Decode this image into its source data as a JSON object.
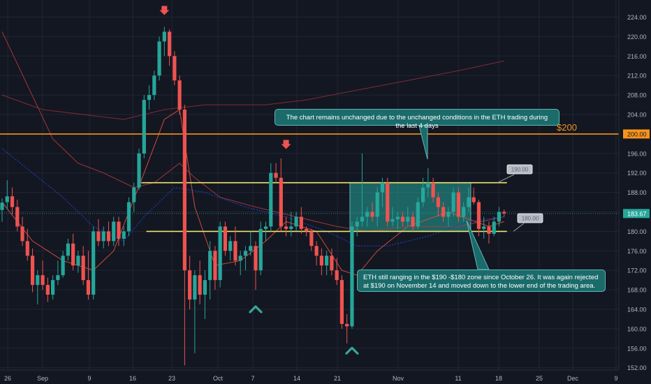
{
  "chart_data": {
    "type": "candlestick",
    "y_axis": {
      "ticks": [
        "224.00",
        "220.00",
        "216.00",
        "212.00",
        "208.00",
        "204.00",
        "200.00",
        "196.00",
        "192.00",
        "188.00",
        "184.00",
        "180.00",
        "176.00",
        "172.00",
        "168.00",
        "164.00",
        "160.00",
        "156.00",
        "152.00"
      ],
      "range": [
        151,
        226
      ]
    },
    "x_axis": {
      "ticks": [
        "26",
        "Sep",
        "9",
        "16",
        "23",
        "Oct",
        "7",
        "14",
        "21",
        "Nov",
        "11",
        "18",
        "25",
        "Dec",
        "9"
      ]
    },
    "price_label": "183.67",
    "candles": [
      {
        "o": 184.4,
        "h": 186.8,
        "l": 182.0,
        "c": 185.9
      },
      {
        "o": 186.0,
        "h": 190.5,
        "l": 184.5,
        "c": 187.2
      },
      {
        "o": 187.2,
        "h": 189.0,
        "l": 183.5,
        "c": 185.0
      },
      {
        "o": 185.0,
        "h": 186.5,
        "l": 180.0,
        "c": 181.0
      },
      {
        "o": 181.0,
        "h": 183.0,
        "l": 177.0,
        "c": 178.0
      },
      {
        "o": 178.0,
        "h": 180.5,
        "l": 174.0,
        "c": 175.0
      },
      {
        "o": 175.0,
        "h": 176.5,
        "l": 167.5,
        "c": 169.0
      },
      {
        "o": 169.0,
        "h": 172.0,
        "l": 165.0,
        "c": 171.0
      },
      {
        "o": 171.0,
        "h": 174.0,
        "l": 168.0,
        "c": 169.0
      },
      {
        "o": 169.0,
        "h": 170.5,
        "l": 165.5,
        "c": 167.0
      },
      {
        "o": 167.0,
        "h": 171.0,
        "l": 166.0,
        "c": 170.0
      },
      {
        "o": 170.0,
        "h": 174.0,
        "l": 169.0,
        "c": 171.0
      },
      {
        "o": 171.0,
        "h": 176.0,
        "l": 170.5,
        "c": 175.0
      },
      {
        "o": 175.0,
        "h": 178.5,
        "l": 174.0,
        "c": 177.5
      },
      {
        "o": 177.5,
        "h": 179.5,
        "l": 172.0,
        "c": 173.0
      },
      {
        "o": 173.0,
        "h": 176.0,
        "l": 171.5,
        "c": 175.0
      },
      {
        "o": 175.0,
        "h": 177.0,
        "l": 169.0,
        "c": 170.0
      },
      {
        "o": 170.0,
        "h": 176.0,
        "l": 166.0,
        "c": 167.0
      },
      {
        "o": 167.0,
        "h": 181.0,
        "l": 166.0,
        "c": 180.0
      },
      {
        "o": 180.0,
        "h": 182.5,
        "l": 177.0,
        "c": 178.0
      },
      {
        "o": 178.0,
        "h": 181.0,
        "l": 176.5,
        "c": 180.0
      },
      {
        "o": 180.0,
        "h": 182.0,
        "l": 177.0,
        "c": 178.0
      },
      {
        "o": 178.0,
        "h": 183.0,
        "l": 177.0,
        "c": 182.0
      },
      {
        "o": 182.0,
        "h": 183.0,
        "l": 177.0,
        "c": 178.5
      },
      {
        "o": 178.5,
        "h": 181.0,
        "l": 177.0,
        "c": 180.0
      },
      {
        "o": 180.0,
        "h": 187.0,
        "l": 179.0,
        "c": 186.0
      },
      {
        "o": 186.0,
        "h": 190.0,
        "l": 184.0,
        "c": 189.0
      },
      {
        "o": 189.0,
        "h": 197.0,
        "l": 188.5,
        "c": 196.0
      },
      {
        "o": 196.0,
        "h": 208.0,
        "l": 195.0,
        "c": 207.0
      },
      {
        "o": 207.0,
        "h": 210.0,
        "l": 205.0,
        "c": 208.0
      },
      {
        "o": 208.0,
        "h": 213.0,
        "l": 207.0,
        "c": 212.0
      },
      {
        "o": 212.0,
        "h": 220.0,
        "l": 211.0,
        "c": 219.0
      },
      {
        "o": 219.0,
        "h": 222.0,
        "l": 216.0,
        "c": 221.0
      },
      {
        "o": 221.0,
        "h": 221.5,
        "l": 214.0,
        "c": 216.0
      },
      {
        "o": 216.0,
        "h": 217.0,
        "l": 210.0,
        "c": 211.0
      },
      {
        "o": 211.0,
        "h": 212.0,
        "l": 204.0,
        "c": 205.0
      },
      {
        "o": 205.0,
        "h": 206.0,
        "l": 152.5,
        "c": 172.0
      },
      {
        "o": 172.0,
        "h": 175.0,
        "l": 164.0,
        "c": 166.0
      },
      {
        "o": 166.0,
        "h": 172.0,
        "l": 155.0,
        "c": 171.0
      },
      {
        "o": 171.0,
        "h": 174.0,
        "l": 165.0,
        "c": 167.0
      },
      {
        "o": 167.0,
        "h": 172.0,
        "l": 162.0,
        "c": 170.0
      },
      {
        "o": 170.0,
        "h": 178.0,
        "l": 166.0,
        "c": 176.0
      },
      {
        "o": 176.0,
        "h": 177.0,
        "l": 168.0,
        "c": 170.0
      },
      {
        "o": 170.0,
        "h": 182.0,
        "l": 168.5,
        "c": 181.0
      },
      {
        "o": 181.0,
        "h": 182.0,
        "l": 175.0,
        "c": 176.0
      },
      {
        "o": 176.0,
        "h": 179.0,
        "l": 174.0,
        "c": 178.0
      },
      {
        "o": 178.0,
        "h": 181.0,
        "l": 173.0,
        "c": 174.0
      },
      {
        "o": 174.0,
        "h": 176.0,
        "l": 171.0,
        "c": 175.0
      },
      {
        "o": 175.0,
        "h": 177.0,
        "l": 172.0,
        "c": 176.0
      },
      {
        "o": 176.0,
        "h": 180.0,
        "l": 175.0,
        "c": 177.0
      },
      {
        "o": 177.0,
        "h": 178.0,
        "l": 168.0,
        "c": 172.0
      },
      {
        "o": 172.0,
        "h": 182.0,
        "l": 171.0,
        "c": 180.5
      },
      {
        "o": 180.5,
        "h": 182.0,
        "l": 178.0,
        "c": 181.0
      },
      {
        "o": 181.0,
        "h": 194.0,
        "l": 180.0,
        "c": 192.0
      },
      {
        "o": 192.0,
        "h": 194.0,
        "l": 190.0,
        "c": 191.0
      },
      {
        "o": 191.0,
        "h": 195.0,
        "l": 180.0,
        "c": 181.0
      },
      {
        "o": 181.0,
        "h": 183.0,
        "l": 179.0,
        "c": 180.5
      },
      {
        "o": 180.5,
        "h": 184.0,
        "l": 179.0,
        "c": 181.0
      },
      {
        "o": 181.0,
        "h": 184.0,
        "l": 180.0,
        "c": 183.0
      },
      {
        "o": 183.0,
        "h": 185.0,
        "l": 179.5,
        "c": 180.5
      },
      {
        "o": 180.5,
        "h": 181.0,
        "l": 179.0,
        "c": 180.0
      },
      {
        "o": 180.0,
        "h": 180.5,
        "l": 176.0,
        "c": 177.0
      },
      {
        "o": 177.0,
        "h": 178.0,
        "l": 173.0,
        "c": 175.0
      },
      {
        "o": 175.0,
        "h": 176.5,
        "l": 171.0,
        "c": 173.0
      },
      {
        "o": 173.0,
        "h": 176.0,
        "l": 171.0,
        "c": 175.0
      },
      {
        "o": 175.0,
        "h": 176.5,
        "l": 171.0,
        "c": 172.0
      },
      {
        "o": 172.0,
        "h": 174.5,
        "l": 169.0,
        "c": 170.0
      },
      {
        "o": 170.0,
        "h": 171.0,
        "l": 160.0,
        "c": 161.0
      },
      {
        "o": 161.0,
        "h": 163.0,
        "l": 157.0,
        "c": 160.5
      },
      {
        "o": 160.5,
        "h": 182.0,
        "l": 160.0,
        "c": 181.0
      },
      {
        "o": 181.0,
        "h": 183.0,
        "l": 179.0,
        "c": 182.0
      },
      {
        "o": 182.0,
        "h": 196.0,
        "l": 181.0,
        "c": 183.0
      },
      {
        "o": 183.0,
        "h": 185.0,
        "l": 181.0,
        "c": 184.0
      },
      {
        "o": 184.0,
        "h": 186.0,
        "l": 182.0,
        "c": 183.0
      },
      {
        "o": 183.0,
        "h": 189.0,
        "l": 181.0,
        "c": 188.0
      },
      {
        "o": 188.0,
        "h": 191.0,
        "l": 185.0,
        "c": 190.0
      },
      {
        "o": 190.0,
        "h": 191.0,
        "l": 181.0,
        "c": 182.0
      },
      {
        "o": 182.0,
        "h": 185.0,
        "l": 181.0,
        "c": 182.5
      },
      {
        "o": 182.5,
        "h": 184.0,
        "l": 180.5,
        "c": 183.0
      },
      {
        "o": 183.0,
        "h": 184.0,
        "l": 181.0,
        "c": 182.0
      },
      {
        "o": 182.0,
        "h": 185.0,
        "l": 181.0,
        "c": 183.0
      },
      {
        "o": 183.0,
        "h": 184.0,
        "l": 180.0,
        "c": 181.0
      },
      {
        "o": 181.0,
        "h": 187.0,
        "l": 180.5,
        "c": 186.0
      },
      {
        "o": 186.0,
        "h": 191.0,
        "l": 185.0,
        "c": 189.0
      },
      {
        "o": 189.0,
        "h": 193.0,
        "l": 187.0,
        "c": 190.0
      },
      {
        "o": 190.0,
        "h": 191.0,
        "l": 186.0,
        "c": 187.0
      },
      {
        "o": 187.0,
        "h": 188.0,
        "l": 183.0,
        "c": 185.0
      },
      {
        "o": 185.0,
        "h": 186.0,
        "l": 182.0,
        "c": 183.0
      },
      {
        "o": 183.0,
        "h": 185.0,
        "l": 181.0,
        "c": 184.0
      },
      {
        "o": 184.0,
        "h": 189.0,
        "l": 183.0,
        "c": 188.0
      },
      {
        "o": 188.0,
        "h": 189.0,
        "l": 182.0,
        "c": 183.0
      },
      {
        "o": 183.0,
        "h": 186.0,
        "l": 182.0,
        "c": 185.0
      },
      {
        "o": 185.0,
        "h": 189.0,
        "l": 184.0,
        "c": 187.0
      },
      {
        "o": 187.0,
        "h": 189.0,
        "l": 185.5,
        "c": 186.0
      },
      {
        "o": 186.0,
        "h": 186.5,
        "l": 179.0,
        "c": 180.5
      },
      {
        "o": 180.5,
        "h": 183.0,
        "l": 178.5,
        "c": 181.0
      },
      {
        "o": 181.0,
        "h": 182.0,
        "l": 177.5,
        "c": 179.5
      },
      {
        "o": 179.5,
        "h": 183.0,
        "l": 179.0,
        "c": 182.0
      },
      {
        "o": 182.0,
        "h": 185.0,
        "l": 181.0,
        "c": 184.0
      },
      {
        "o": 184.0,
        "h": 184.5,
        "l": 183.0,
        "c": 183.7
      }
    ],
    "moving_averages": [
      {
        "color": "#e0523f",
        "points": [
          [
            0,
            186
          ],
          [
            6,
            178
          ],
          [
            12,
            174
          ],
          [
            18,
            172
          ],
          [
            22,
            176
          ],
          [
            28,
            192
          ],
          [
            32,
            203
          ],
          [
            35,
            205
          ],
          [
            38,
            185
          ],
          [
            42,
            173
          ],
          [
            47,
            174
          ],
          [
            52,
            178
          ],
          [
            56,
            182
          ],
          [
            62,
            180
          ],
          [
            67,
            172
          ],
          [
            70,
            171
          ],
          [
            74,
            176
          ],
          [
            80,
            181
          ],
          [
            88,
            184
          ],
          [
            96,
            181
          ],
          [
            99,
            182
          ]
        ]
      },
      {
        "color": "#b0393a",
        "points": [
          [
            0,
            221
          ],
          [
            5,
            210
          ],
          [
            10,
            199
          ],
          [
            15,
            194
          ],
          [
            20,
            192
          ],
          [
            26,
            189
          ],
          [
            30,
            190
          ],
          [
            35,
            194
          ],
          [
            38,
            191
          ],
          [
            43,
            187
          ],
          [
            50,
            185
          ],
          [
            58,
            183
          ],
          [
            66,
            181
          ],
          [
            72,
            180
          ],
          [
            80,
            181
          ],
          [
            90,
            181
          ],
          [
            99,
            183
          ]
        ]
      },
      {
        "color": "#8a2f3a",
        "points": [
          [
            0,
            208
          ],
          [
            8,
            205
          ],
          [
            16,
            204
          ],
          [
            24,
            203
          ],
          [
            32,
            205
          ],
          [
            40,
            206
          ],
          [
            52,
            206
          ],
          [
            60,
            207
          ],
          [
            70,
            209
          ],
          [
            80,
            211
          ],
          [
            90,
            213
          ],
          [
            99,
            215
          ]
        ]
      },
      {
        "color": "#1e3db8",
        "dashed": true,
        "points": [
          [
            0,
            197
          ],
          [
            6,
            192
          ],
          [
            12,
            187
          ],
          [
            18,
            181
          ],
          [
            24,
            178
          ],
          [
            28,
            183
          ],
          [
            34,
            189
          ],
          [
            40,
            188
          ],
          [
            48,
            185
          ],
          [
            56,
            183
          ],
          [
            64,
            180
          ],
          [
            70,
            177
          ],
          [
            76,
            177
          ],
          [
            84,
            179
          ],
          [
            92,
            182
          ],
          [
            99,
            183
          ]
        ]
      }
    ],
    "levels": [
      {
        "name": "200 line",
        "value": 200,
        "color": "#f7931a",
        "label": "$200",
        "tag": "200.00"
      },
      {
        "name": "190 line",
        "value": 190,
        "color": "#f0e66c",
        "label": "190.00",
        "from": 28,
        "to": 99
      },
      {
        "name": "180 line",
        "value": 180,
        "color": "#f0e66c",
        "label": "180.00",
        "from": 29,
        "to": 99
      }
    ],
    "range_box": {
      "from": 69,
      "to": 92,
      "high": 190,
      "low": 180,
      "color": "#26a69a"
    },
    "annotations": {
      "top": "The chart remains unchanged due to the unchanged conditions in the ETH trading during the last 4 days",
      "bottom": "ETH still ranging in the $190 -$180 zone since October 26. It was again rejected at $190 on November 14 and moved down to the lower end of the trading area."
    },
    "markers": [
      {
        "kind": "down-arrow",
        "index": 32,
        "value": 225,
        "color": "#ef5350"
      },
      {
        "kind": "down-arrow",
        "index": 56,
        "value": 197.5,
        "color": "#ef5350"
      },
      {
        "kind": "up-chevron",
        "index": 50,
        "value": 164,
        "color": "#3aa59a"
      },
      {
        "kind": "up-chevron",
        "index": 69,
        "value": 155.5,
        "color": "#3aa59a"
      }
    ],
    "colors": {
      "up": "#26a69a",
      "down": "#ef5350",
      "grid": "#232633",
      "axis_text": "#b2b5be",
      "price_tag": "#26a69a"
    }
  }
}
